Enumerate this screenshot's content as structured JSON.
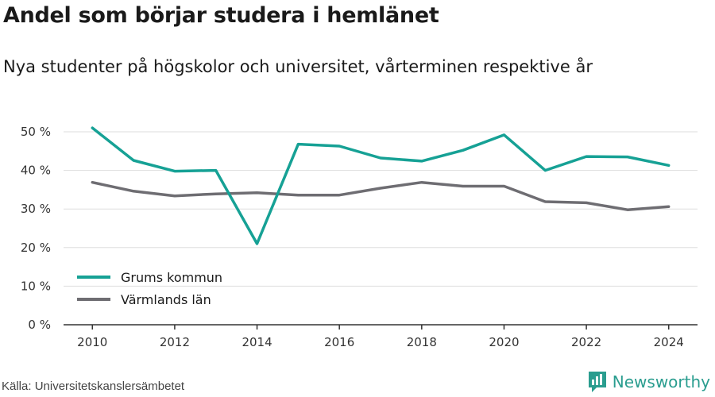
{
  "title": "Andel som börjar studera i hemlänet",
  "subtitle": "Nya studenter på högskolor och universitet, vårterminen respektive år",
  "source": "Källa: Universitetskanslersämbetet",
  "brand": {
    "name": "Newsworthy",
    "color": "#2a9d8f",
    "icon": "newsworthy-logo-icon"
  },
  "colors": {
    "grid": "#dddddd",
    "axis": "#333333"
  },
  "chart_data": {
    "type": "line",
    "title": "Andel som börjar studera i hemlänet",
    "subtitle": "Nya studenter på högskolor och universitet, vårterminen respektive år",
    "xlabel": "",
    "ylabel": "",
    "x": [
      2010,
      2011,
      2012,
      2013,
      2014,
      2015,
      2016,
      2017,
      2018,
      2019,
      2020,
      2021,
      2022,
      2023,
      2024
    ],
    "xticks": [
      2010,
      2012,
      2014,
      2016,
      2018,
      2020,
      2022,
      2024
    ],
    "xtick_labels": [
      "2010",
      "2012",
      "2014",
      "2016",
      "2018",
      "2020",
      "2022",
      "2024"
    ],
    "xlim": [
      2009.3,
      2024.7
    ],
    "ylim": [
      0,
      50
    ],
    "yticks": [
      0,
      10,
      20,
      30,
      40,
      50
    ],
    "ytick_labels": [
      "0 %",
      "10 %",
      "20 %",
      "30 %",
      "40 %",
      "50 %"
    ],
    "grid": true,
    "legend_position": "bottom-left",
    "series": [
      {
        "name": "Grums kommun",
        "color": "#16a195",
        "values": [
          51.0,
          42.6,
          39.8,
          40.0,
          21.0,
          46.8,
          46.3,
          43.2,
          42.4,
          45.2,
          49.2,
          40.0,
          43.6,
          43.5,
          41.3
        ]
      },
      {
        "name": "Värmlands län",
        "color": "#6e6d72",
        "values": [
          36.9,
          34.6,
          33.4,
          33.9,
          34.2,
          33.6,
          33.6,
          35.4,
          36.9,
          35.9,
          35.9,
          31.9,
          31.6,
          29.8,
          30.6
        ]
      }
    ]
  }
}
